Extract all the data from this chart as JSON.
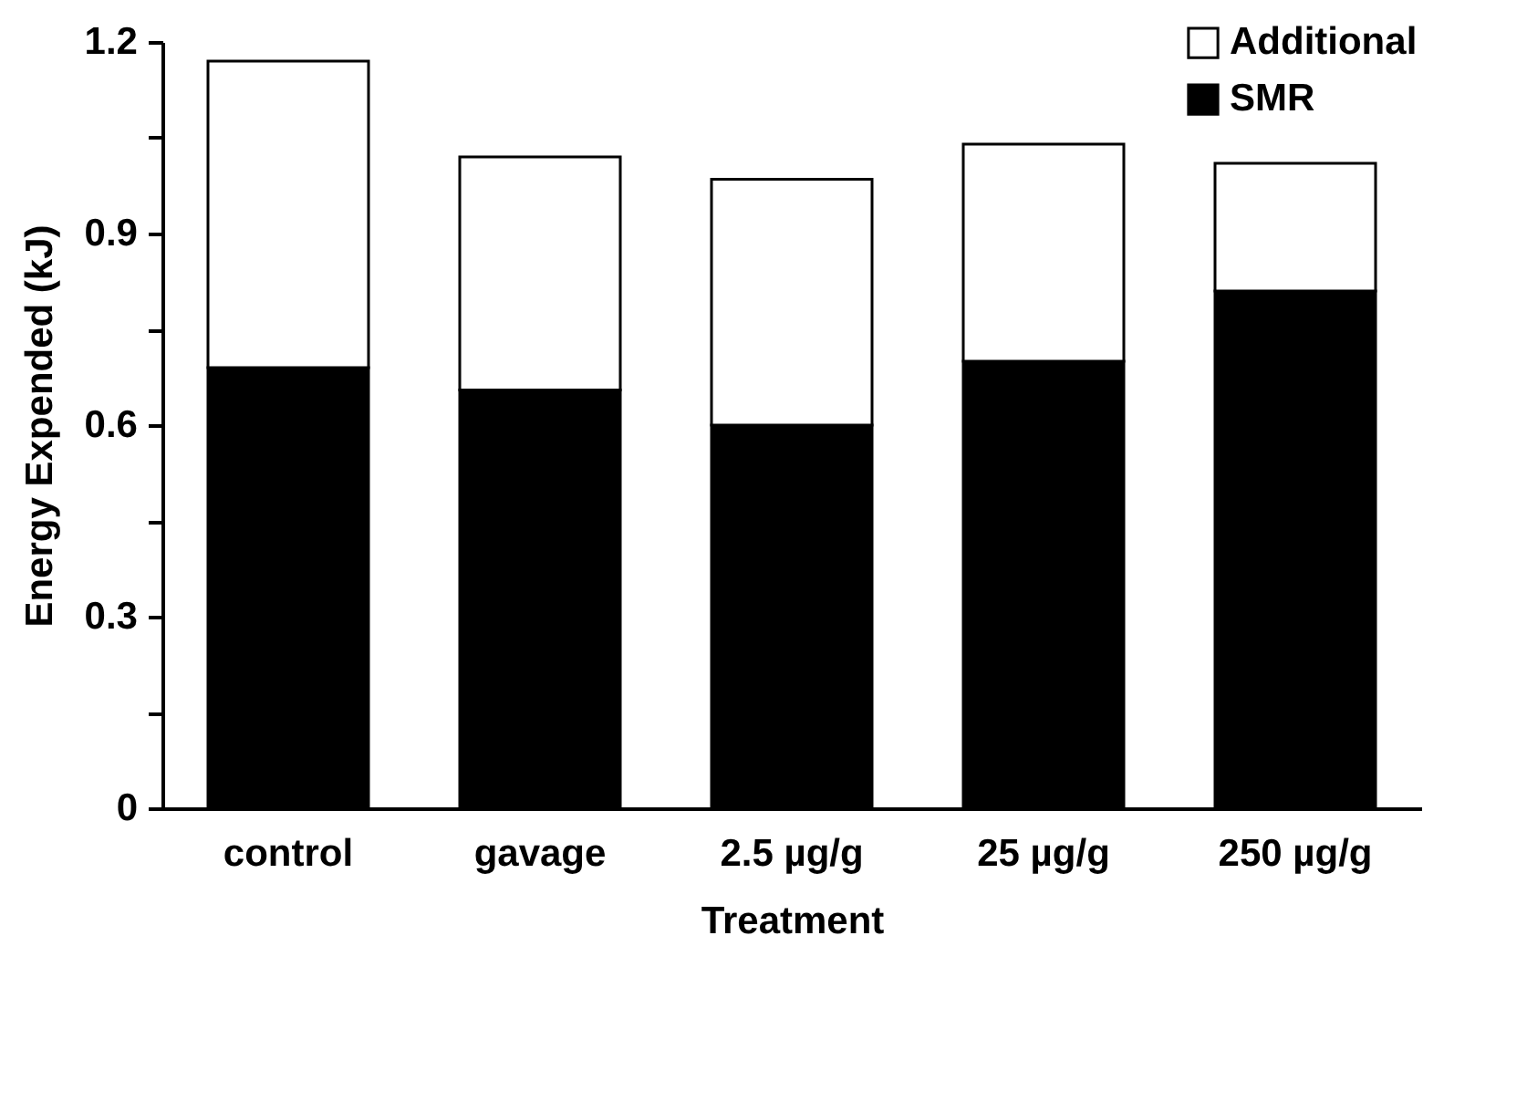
{
  "chart_data": {
    "type": "bar",
    "stacked": true,
    "xlabel": "Treatment",
    "ylabel": "Energy Expended (kJ)",
    "categories": [
      "control",
      "gavage",
      "2.5 µg/g",
      "25 µg/g",
      "250 µg/g"
    ],
    "series": [
      {
        "name": "SMR",
        "color": "#000000",
        "values": [
          0.69,
          0.655,
          0.6,
          0.7,
          0.81
        ]
      },
      {
        "name": "Additional",
        "color": "#ffffff",
        "values": [
          0.48,
          0.365,
          0.385,
          0.34,
          0.2
        ]
      }
    ],
    "ylim": [
      0,
      1.2
    ],
    "yticks": [
      0,
      {
        "value": 0.15,
        "label": null
      },
      0.3,
      {
        "value": 0.45,
        "label": null
      },
      0.6,
      {
        "value": 0.75,
        "label": null
      },
      0.9,
      {
        "value": 1.05,
        "label": null
      },
      1.2
    ],
    "grid": false,
    "legend": "top right"
  }
}
